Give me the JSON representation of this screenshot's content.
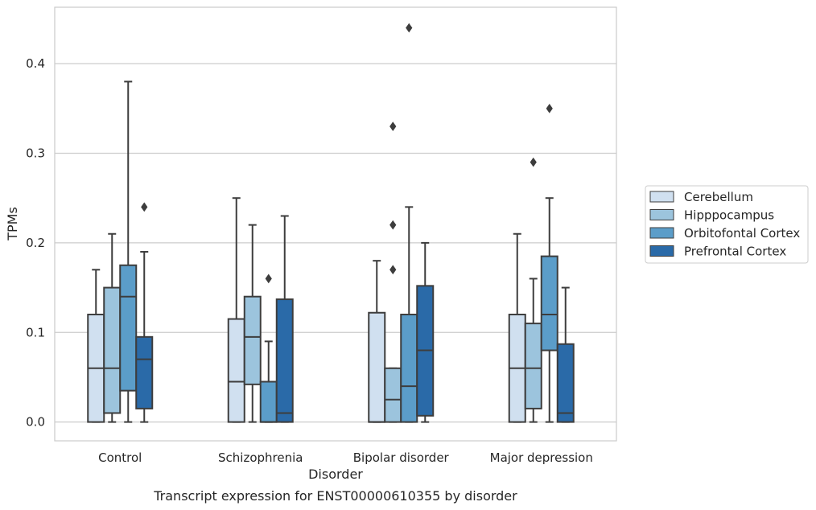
{
  "chart_data": {
    "type": "box",
    "caption": "Transcript expression for ENST00000610355 by disorder",
    "xlabel": "Disorder",
    "ylabel": "TPMs",
    "ylim": [
      -0.021,
      0.463
    ],
    "yticks": [
      0.0,
      0.1,
      0.2,
      0.3,
      0.4
    ],
    "ytick_labels": [
      "0.0",
      "0.1",
      "0.2",
      "0.3",
      "0.4"
    ],
    "grid": "horizontal",
    "legend_position": "right",
    "categories": [
      "Control",
      "Schizophrenia",
      "Bipolar disorder",
      "Major depression"
    ],
    "series": [
      {
        "name": "Cerebellum",
        "color": "#d0e0f0",
        "boxes": [
          {
            "whislo": 0.0,
            "q1": 0.0,
            "med": 0.06,
            "q3": 0.12,
            "whishi": 0.17,
            "fliers": []
          },
          {
            "whislo": 0.0,
            "q1": 0.0,
            "med": 0.045,
            "q3": 0.115,
            "whishi": 0.25,
            "fliers": []
          },
          {
            "whislo": 0.0,
            "q1": 0.0,
            "med": 0.0,
            "q3": 0.122,
            "whishi": 0.18,
            "fliers": []
          },
          {
            "whislo": 0.0,
            "q1": 0.0,
            "med": 0.06,
            "q3": 0.12,
            "whishi": 0.21,
            "fliers": []
          }
        ]
      },
      {
        "name": "Hipppocampus",
        "color": "#9cc4dd",
        "boxes": [
          {
            "whislo": 0.0,
            "q1": 0.01,
            "med": 0.06,
            "q3": 0.15,
            "whishi": 0.21,
            "fliers": []
          },
          {
            "whislo": 0.0,
            "q1": 0.042,
            "med": 0.095,
            "q3": 0.14,
            "whishi": 0.22,
            "fliers": []
          },
          {
            "whislo": 0.0,
            "q1": 0.0,
            "med": 0.025,
            "q3": 0.06,
            "whishi": 0.06,
            "fliers": [
              0.17,
              0.22,
              0.33
            ]
          },
          {
            "whislo": 0.0,
            "q1": 0.015,
            "med": 0.06,
            "q3": 0.11,
            "whishi": 0.16,
            "fliers": [
              0.29
            ]
          }
        ]
      },
      {
        "name": "Orbitofontal Cortex",
        "color": "#5b9dc9",
        "boxes": [
          {
            "whislo": 0.0,
            "q1": 0.035,
            "med": 0.14,
            "q3": 0.175,
            "whishi": 0.38,
            "fliers": []
          },
          {
            "whislo": 0.0,
            "q1": 0.0,
            "med": 0.0,
            "q3": 0.045,
            "whishi": 0.09,
            "fliers": [
              0.16
            ]
          },
          {
            "whislo": 0.0,
            "q1": 0.0,
            "med": 0.04,
            "q3": 0.12,
            "whishi": 0.24,
            "fliers": [
              0.44
            ]
          },
          {
            "whislo": 0.0,
            "q1": 0.08,
            "med": 0.12,
            "q3": 0.185,
            "whishi": 0.25,
            "fliers": [
              0.35
            ]
          }
        ]
      },
      {
        "name": "Prefrontal Cortex",
        "color": "#2a6aa8",
        "boxes": [
          {
            "whislo": 0.0,
            "q1": 0.015,
            "med": 0.07,
            "q3": 0.095,
            "whishi": 0.19,
            "fliers": [
              0.24
            ]
          },
          {
            "whislo": 0.0,
            "q1": 0.0,
            "med": 0.01,
            "q3": 0.137,
            "whishi": 0.23,
            "fliers": []
          },
          {
            "whislo": 0.0,
            "q1": 0.007,
            "med": 0.08,
            "q3": 0.152,
            "whishi": 0.2,
            "fliers": []
          },
          {
            "whislo": 0.0,
            "q1": 0.0,
            "med": 0.01,
            "q3": 0.087,
            "whishi": 0.15,
            "fliers": []
          }
        ]
      }
    ]
  }
}
